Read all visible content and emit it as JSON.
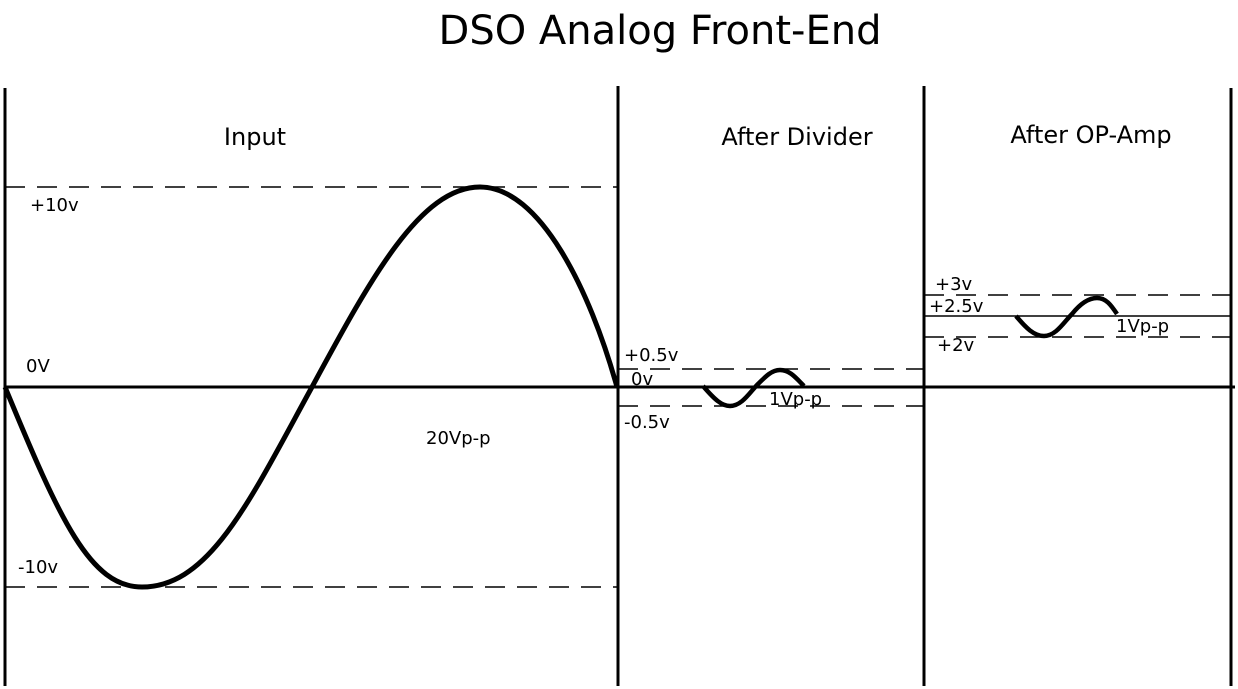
{
  "title": "DSO Analog Front-End",
  "panels": {
    "input": {
      "heading": "Input",
      "plus_label": "+10v",
      "minus_label": "-10v",
      "zero_label": "0V",
      "amplitude_label": "20Vp-p"
    },
    "divider": {
      "heading": "After Divider",
      "plus_label": "+0.5v",
      "zero_label": "0v",
      "minus_label": "-0.5v",
      "amplitude_label": "1Vp-p"
    },
    "opamp": {
      "heading": "After OP-Amp",
      "plus_label": "+3v",
      "mid_label": "+2.5v",
      "minus_label": "+2v",
      "amplitude_label": "1Vp-p"
    }
  }
}
